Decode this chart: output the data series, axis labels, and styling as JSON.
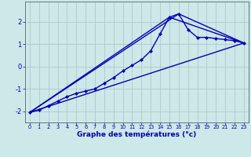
{
  "title": "Graphe des températures (°c)",
  "background_color": "#cce8e8",
  "grid_color": "#aacccc",
  "line_color": "#0000bb",
  "xlim": [
    -0.5,
    23.5
  ],
  "ylim": [
    -2.5,
    2.9
  ],
  "xticks": [
    0,
    1,
    2,
    3,
    4,
    5,
    6,
    7,
    8,
    9,
    10,
    11,
    12,
    13,
    14,
    15,
    16,
    17,
    18,
    19,
    20,
    21,
    22,
    23
  ],
  "yticks": [
    -2,
    -1,
    0,
    1,
    2
  ],
  "lines": [
    {
      "x": [
        0,
        1,
        2,
        3,
        4,
        5,
        6,
        7,
        8,
        9,
        10,
        11,
        12,
        13,
        14,
        15,
        16,
        17,
        18,
        19,
        20,
        21,
        22,
        23
      ],
      "y": [
        -2.05,
        -1.95,
        -1.75,
        -1.55,
        -1.35,
        -1.2,
        -1.1,
        -1.0,
        -0.75,
        -0.5,
        -0.2,
        0.05,
        0.3,
        0.7,
        1.45,
        2.2,
        2.35,
        1.65,
        1.3,
        1.3,
        1.25,
        1.2,
        1.15,
        1.05
      ],
      "marker": "D",
      "markersize": 2.0,
      "linewidth": 1.0,
      "with_markers": true
    },
    {
      "x": [
        0,
        23
      ],
      "y": [
        -2.05,
        1.05
      ],
      "linewidth": 1.0,
      "with_markers": false
    },
    {
      "x": [
        0,
        15,
        23
      ],
      "y": [
        -2.05,
        2.2,
        1.05
      ],
      "linewidth": 1.0,
      "with_markers": false
    },
    {
      "x": [
        0,
        16,
        23
      ],
      "y": [
        -2.05,
        2.35,
        1.05
      ],
      "linewidth": 1.0,
      "with_markers": false
    }
  ]
}
